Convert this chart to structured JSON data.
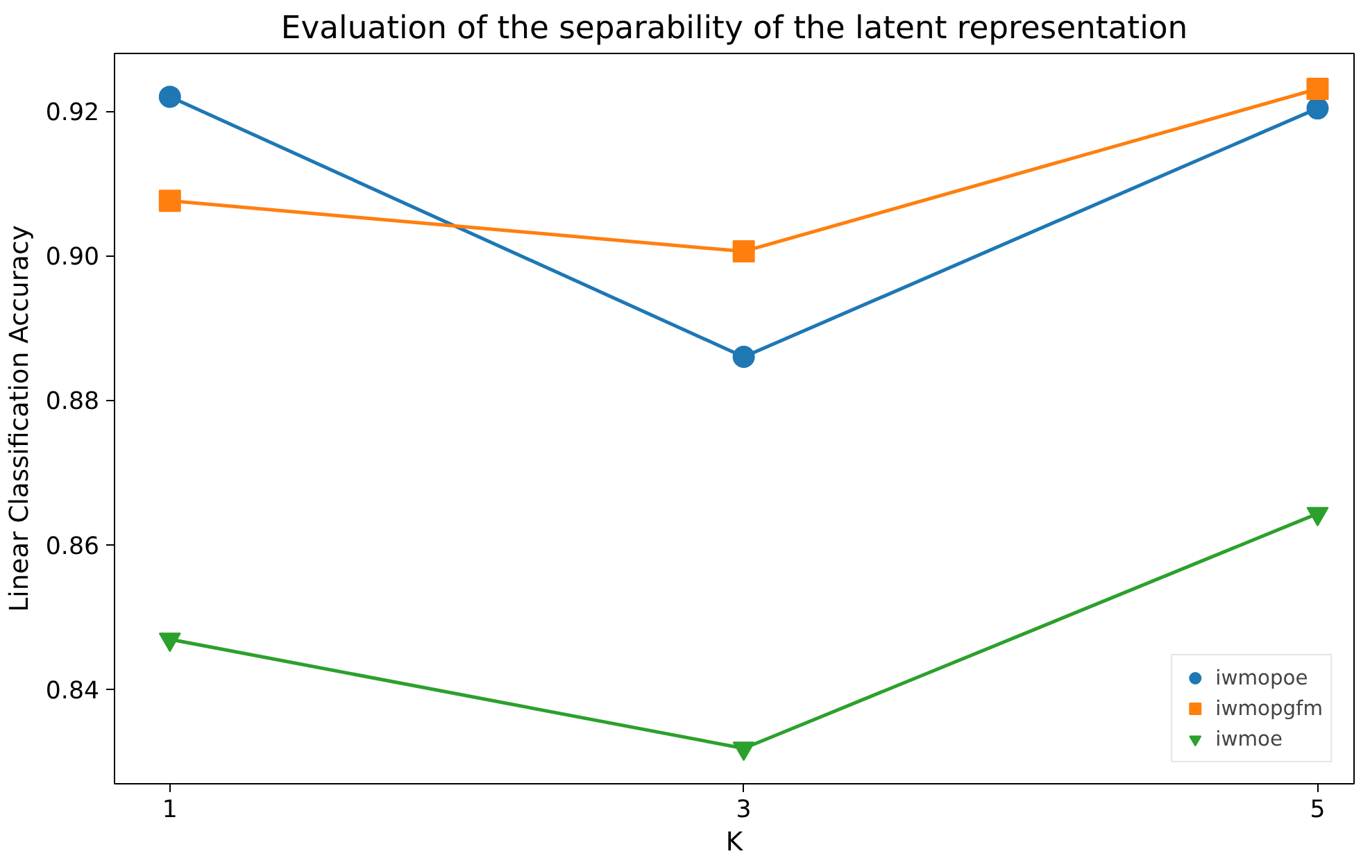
{
  "chart_data": {
    "type": "line",
    "title": "Evaluation of the separability of the latent representation",
    "xlabel": "K",
    "ylabel": "Linear Classification Accuracy",
    "x": [
      1,
      3,
      5
    ],
    "series": [
      {
        "name": "iwmopoe",
        "color": "#1f77b4",
        "marker": "circle",
        "values": [
          0.922,
          0.886,
          0.9204
        ]
      },
      {
        "name": "iwmopgfm",
        "color": "#ff7f0e",
        "marker": "square",
        "values": [
          0.9076,
          0.9006,
          0.9231
        ]
      },
      {
        "name": "iwmoe",
        "color": "#2ca02c",
        "marker": "triangle",
        "values": [
          0.8469,
          0.8318,
          0.8643
        ]
      }
    ],
    "xlim": [
      0.807,
      5.127
    ],
    "ylim": [
      0.8269,
      0.928
    ],
    "xticks": [
      1,
      3,
      5
    ],
    "yticks": [
      {
        "value": 0.84,
        "label": "0.84"
      },
      {
        "value": 0.86,
        "label": "0.86"
      },
      {
        "value": 0.88,
        "label": "0.88"
      },
      {
        "value": 0.9,
        "label": "0.90"
      },
      {
        "value": 0.92,
        "label": "0.92"
      }
    ],
    "grid": false,
    "legend": "bottom right",
    "line_style": "solid"
  }
}
